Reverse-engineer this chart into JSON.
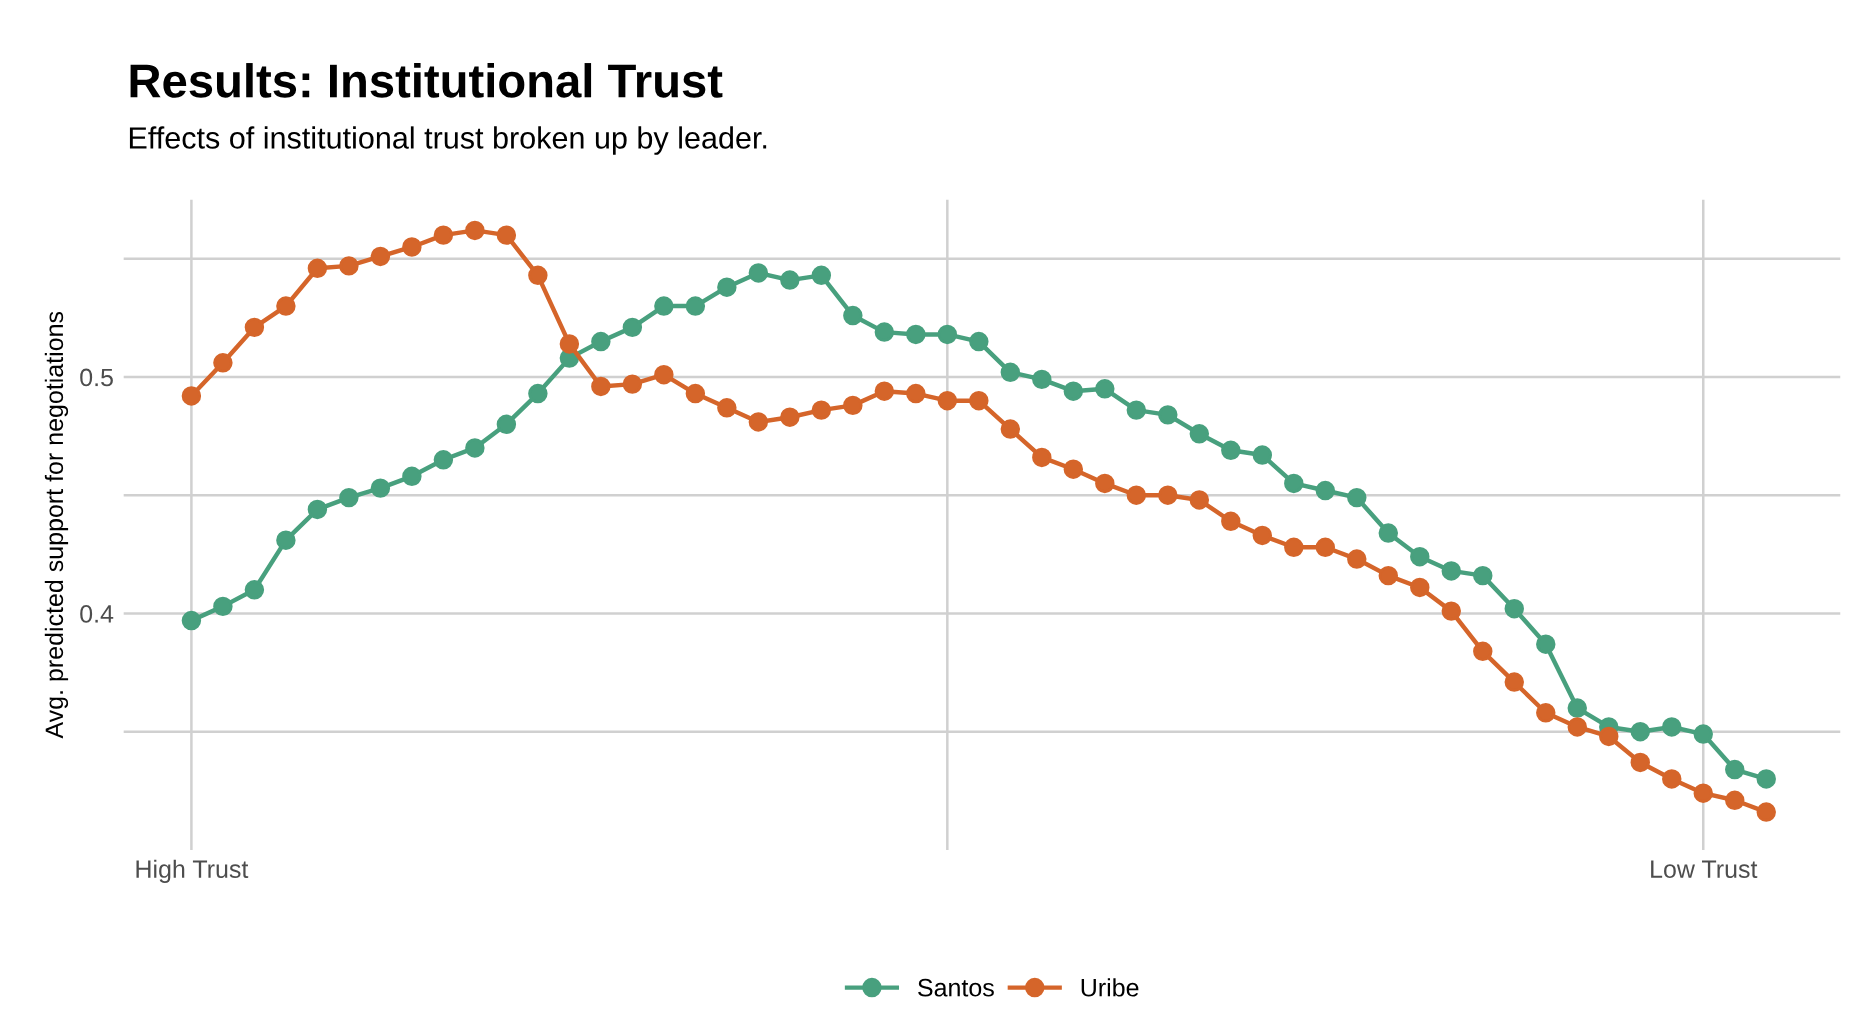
{
  "chart_data": {
    "type": "line",
    "title": "Results: Institutional Trust",
    "subtitle": "Effects of institutional trust broken up by leader.",
    "ylabel": "Avg. predicted support for negotiations",
    "categories": [
      "High Trust",
      null,
      null,
      null,
      null,
      null,
      null,
      null,
      null,
      null,
      null,
      null,
      null,
      null,
      null,
      null,
      null,
      null,
      null,
      null,
      null,
      null,
      null,
      null,
      null,
      null,
      null,
      null,
      null,
      null,
      null,
      null,
      null,
      null,
      null,
      null,
      null,
      null,
      null,
      null,
      null,
      null,
      null,
      null,
      null,
      null,
      null,
      null,
      "Low Trust",
      null,
      null
    ],
    "series": [
      {
        "name": "Santos",
        "color": "#48a07e",
        "values": [
          0.397,
          0.403,
          0.41,
          0.431,
          0.444,
          0.449,
          0.453,
          0.458,
          0.465,
          0.47,
          0.48,
          0.493,
          0.508,
          0.515,
          0.521,
          0.53,
          0.53,
          0.538,
          0.544,
          0.541,
          0.543,
          0.526,
          0.519,
          0.518,
          0.518,
          0.515,
          0.502,
          0.499,
          0.494,
          0.495,
          0.486,
          0.484,
          0.476,
          0.469,
          0.467,
          0.455,
          0.452,
          0.449,
          0.434,
          0.424,
          0.418,
          0.416,
          0.402,
          0.387,
          0.36,
          0.352,
          0.35,
          0.352,
          0.349,
          0.334,
          0.33
        ]
      },
      {
        "name": "Uribe",
        "color": "#d5652a",
        "values": [
          0.492,
          0.506,
          0.521,
          0.53,
          0.546,
          0.547,
          0.551,
          0.555,
          0.56,
          0.562,
          0.56,
          0.543,
          0.514,
          0.496,
          0.497,
          0.501,
          0.493,
          0.487,
          0.481,
          0.483,
          0.486,
          0.488,
          0.494,
          0.493,
          0.49,
          0.49,
          0.478,
          0.466,
          0.461,
          0.455,
          0.45,
          0.45,
          0.448,
          0.439,
          0.433,
          0.428,
          0.428,
          0.423,
          0.416,
          0.411,
          0.401,
          0.384,
          0.371,
          0.358,
          0.352,
          0.348,
          0.337,
          0.33,
          0.324,
          0.321,
          0.316
        ]
      }
    ],
    "ylim": [
      0.3,
      0.575
    ],
    "yticks": [
      {
        "value": 0.35,
        "label": null
      },
      0.4,
      {
        "value": 0.45,
        "label": null
      },
      0.5,
      {
        "value": 0.55,
        "label": null
      }
    ],
    "grid": true,
    "legend": "bottom",
    "marker": "circle",
    "line_style": "solid"
  }
}
